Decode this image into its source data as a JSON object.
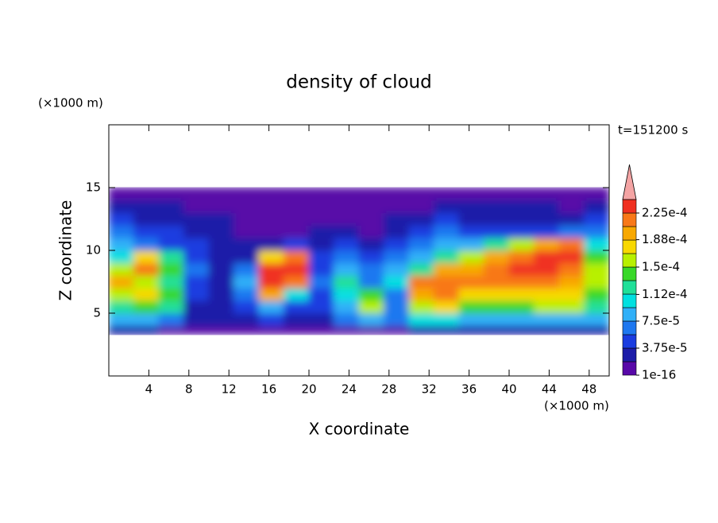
{
  "chart_data": {
    "type": "contour",
    "title": "density of cloud",
    "xlabel": "X coordinate",
    "ylabel": "Z coordinate",
    "x_unit": "(×1000 m)",
    "y_unit": "(×1000 m)",
    "annotation": "t=151200 s",
    "xlim": [
      0,
      50
    ],
    "ylim": [
      0,
      20
    ],
    "xticks": [
      4,
      8,
      12,
      16,
      20,
      24,
      28,
      32,
      36,
      40,
      44,
      48
    ],
    "yticks": [
      5,
      10,
      15
    ],
    "x": [
      0,
      2.5,
      5,
      7.5,
      10,
      12.5,
      15,
      17.5,
      20,
      22.5,
      25,
      27.5,
      30,
      32.5,
      35,
      37.5,
      40,
      42.5,
      45,
      47.5,
      50
    ],
    "z": [
      3.3,
      4,
      5,
      6,
      7,
      8,
      9,
      10,
      11,
      12,
      13,
      14,
      15
    ],
    "values": [
      [
        2.8e-05,
        2.8e-05,
        9e-06,
        9e-06,
        9e-06,
        9e-06,
        9e-06,
        9e-06,
        9e-06,
        9e-06,
        9e-06,
        9e-06,
        2.8e-05,
        2.8e-05,
        2.8e-05,
        2.8e-05,
        2.8e-05,
        2.8e-05,
        2.8e-05,
        2.8e-05
      ],
      [
        8.4e-05,
        8.4e-05,
        6.6e-05,
        2.8e-05,
        2.8e-05,
        2.8e-05,
        4.7e-05,
        2.8e-05,
        2.8e-05,
        6.6e-05,
        8.4e-05,
        6.6e-05,
        0.000103,
        0.000103,
        8.4e-05,
        8.4e-05,
        8.4e-05,
        8.4e-05,
        8.4e-05,
        8.4e-05
      ],
      [
        0.000122,
        0.000141,
        0.000122,
        2.8e-05,
        2.8e-05,
        4.7e-05,
        8.4e-05,
        4.7e-05,
        4.7e-05,
        8.4e-05,
        0.000159,
        6.6e-05,
        0.000159,
        0.000178,
        0.000141,
        0.000141,
        0.000141,
        0.000159,
        0.000159,
        0.000122
      ],
      [
        0.000159,
        0.000178,
        0.000141,
        4.7e-05,
        2.8e-05,
        6.6e-05,
        0.000197,
        0.000103,
        4.7e-05,
        0.000103,
        0.000141,
        6.6e-05,
        0.000197,
        0.000216,
        0.000178,
        0.000178,
        0.000178,
        0.000178,
        0.000178,
        0.000141
      ],
      [
        0.000197,
        0.000159,
        0.000122,
        4.7e-05,
        2.8e-05,
        8.4e-05,
        0.000234,
        0.000216,
        6.6e-05,
        0.000122,
        6.6e-05,
        0.000103,
        0.000216,
        0.000216,
        0.000216,
        0.000216,
        0.000216,
        0.000216,
        0.000197,
        0.000159
      ],
      [
        0.000159,
        0.000216,
        0.000141,
        6.6e-05,
        2.8e-05,
        6.6e-05,
        0.000234,
        0.000234,
        4.7e-05,
        8.4e-05,
        6.6e-05,
        8.4e-05,
        0.000122,
        0.000197,
        0.000197,
        0.000216,
        0.000234,
        0.000234,
        0.000216,
        0.000159
      ],
      [
        0.000103,
        0.000178,
        0.000122,
        4.7e-05,
        2.8e-05,
        2.8e-05,
        0.000178,
        0.000216,
        4.7e-05,
        6.6e-05,
        4.7e-05,
        6.6e-05,
        8.4e-05,
        0.000122,
        0.000159,
        0.000197,
        0.000216,
        0.000234,
        0.000234,
        0.000141
      ],
      [
        8.4e-05,
        6.6e-05,
        4.7e-05,
        4.7e-05,
        2.8e-05,
        2.8e-05,
        2.8e-05,
        4.7e-05,
        2.8e-05,
        4.7e-05,
        2.8e-05,
        4.7e-05,
        6.6e-05,
        8.4e-05,
        8.4e-05,
        0.000122,
        0.000159,
        0.000197,
        0.000216,
        0.000103
      ],
      [
        6.6e-05,
        4.7e-05,
        4.7e-05,
        2.8e-05,
        2.8e-05,
        9e-06,
        9e-06,
        9e-06,
        2.8e-05,
        2.8e-05,
        9e-06,
        2.8e-05,
        4.7e-05,
        6.6e-05,
        4.7e-05,
        4.7e-05,
        4.7e-05,
        4.7e-05,
        6.6e-05,
        6.6e-05
      ],
      [
        4.7e-05,
        2.8e-05,
        2.8e-05,
        2.8e-05,
        2.8e-05,
        9e-06,
        9e-06,
        9e-06,
        9e-06,
        9e-06,
        9e-06,
        2.8e-05,
        2.8e-05,
        4.7e-05,
        2.8e-05,
        2.8e-05,
        2.8e-05,
        2.8e-05,
        2.8e-05,
        4.7e-05
      ],
      [
        2.8e-05,
        2.8e-05,
        2.8e-05,
        9e-06,
        9e-06,
        9e-06,
        9e-06,
        9e-06,
        9e-06,
        9e-06,
        9e-06,
        9e-06,
        9e-06,
        2.8e-05,
        2.8e-05,
        2.8e-05,
        2.8e-05,
        2.8e-05,
        9e-06,
        2.8e-05
      ],
      [
        9e-06,
        9e-06,
        9e-06,
        9e-06,
        9e-06,
        9e-06,
        9e-06,
        9e-06,
        9e-06,
        9e-06,
        9e-06,
        9e-06,
        9e-06,
        9e-06,
        9e-06,
        9e-06,
        9e-06,
        9e-06,
        9e-06,
        9e-06
      ]
    ],
    "colorbar": {
      "levels": [
        1e-16,
        1.875e-05,
        3.75e-05,
        5.625e-05,
        7.5e-05,
        9.375e-05,
        0.0001125,
        0.00013125,
        0.00015,
        0.00016875,
        0.0001875,
        0.00020625,
        0.000225,
        0.00024375
      ],
      "colors": [
        "#5808a8",
        "#1c1ca8",
        "#1a3ce0",
        "#1e78f0",
        "#30b0f8",
        "#00e0e0",
        "#20e098",
        "#38d828",
        "#b8f000",
        "#f8d800",
        "#f8a800",
        "#f87818",
        "#f03020"
      ],
      "over_color": "#f4a4a4",
      "ticks": [
        1e-16,
        {
          "value": 3.75e-05,
          "label": "3.75e-5"
        },
        {
          "value": 7.5e-05,
          "label": "7.5e-5"
        },
        {
          "value": 0.000112,
          "label": "1.12e-4"
        },
        {
          "value": 0.00015,
          "label": "1.5e-4"
        },
        {
          "value": 0.000188,
          "label": "1.88e-4"
        },
        {
          "value": 0.000225,
          "label": "2.25e-4"
        }
      ]
    }
  }
}
